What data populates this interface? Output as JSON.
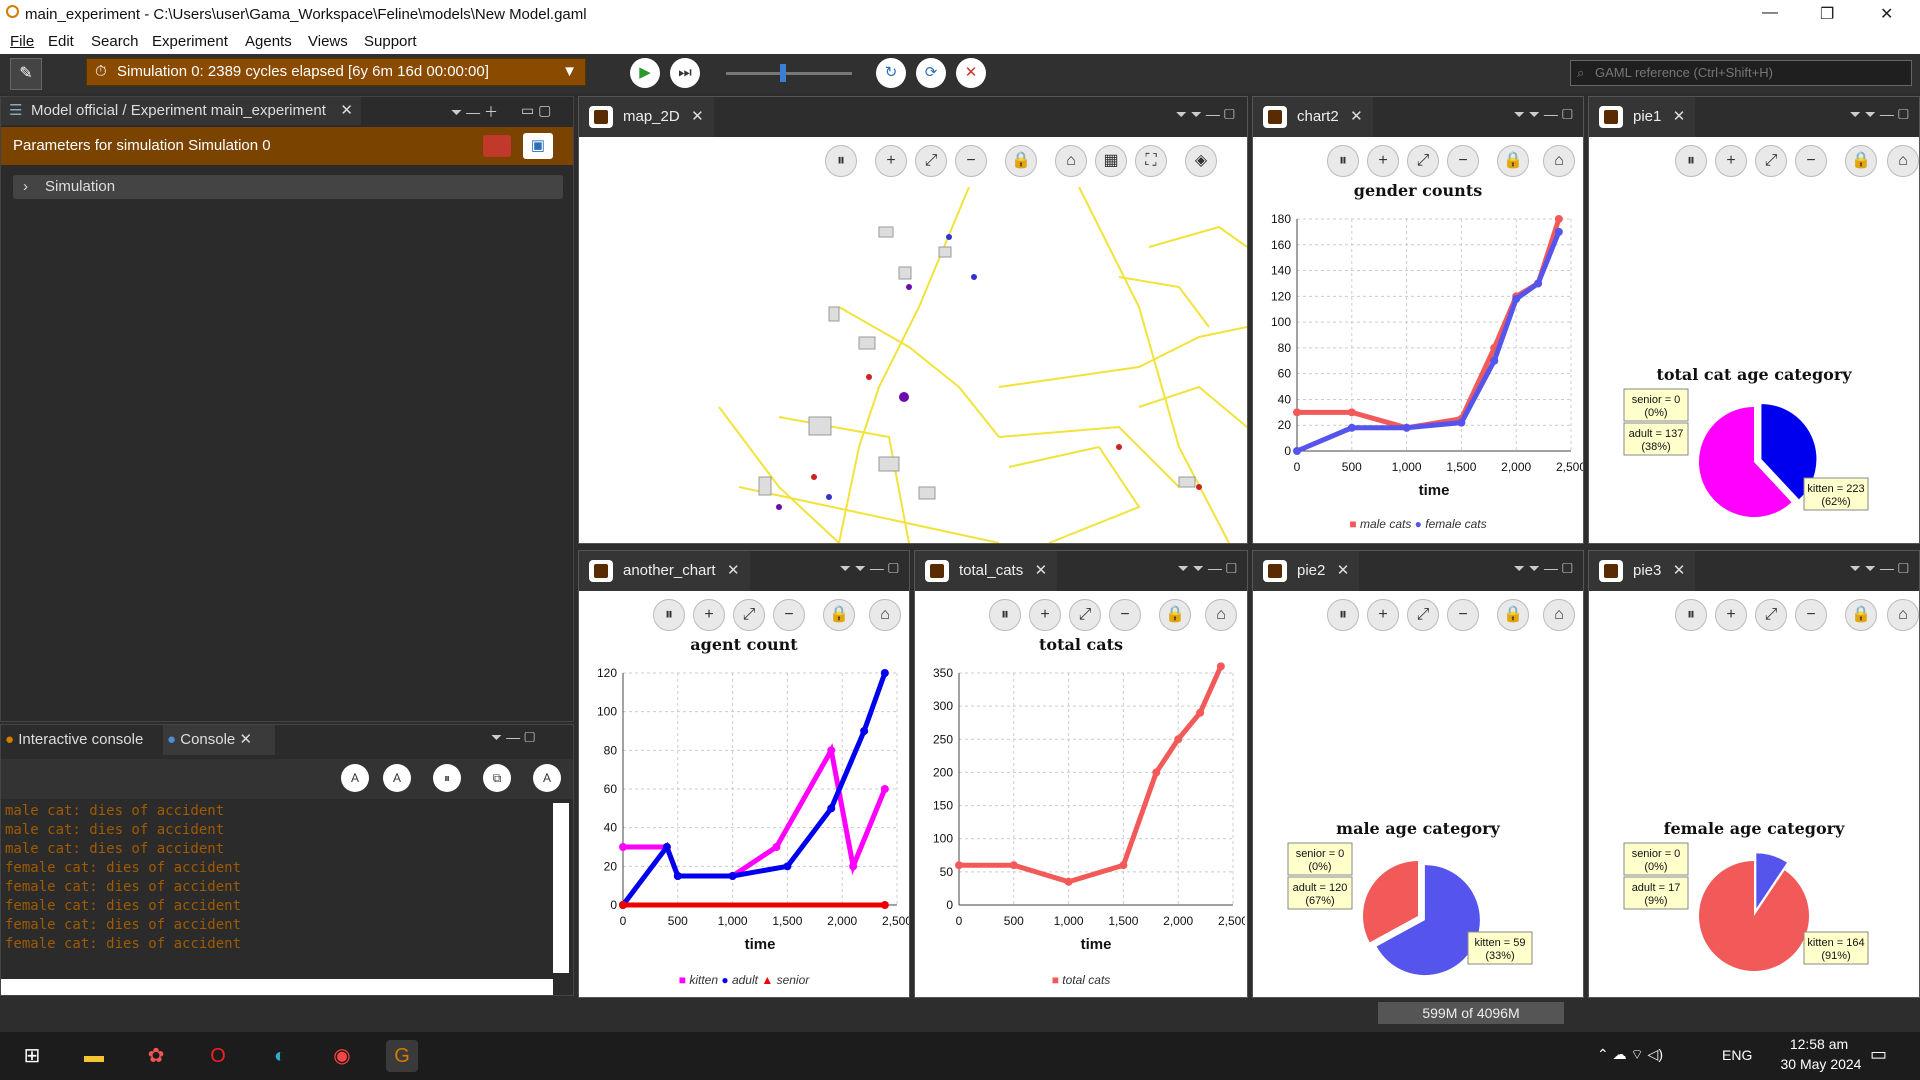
{
  "window": {
    "title": "main_experiment - C:\\Users\\user\\Gama_Workspace\\Feline\\models\\New Model.gaml",
    "min": "—",
    "max": "❐",
    "close": "✕"
  },
  "menu": [
    "File",
    "Edit",
    "Search",
    "Experiment",
    "Agents",
    "Views",
    "Support"
  ],
  "toolbar": {
    "sim_status": "Simulation 0: 2389 cycles elapsed [6y 6m 16d 00:00:00]",
    "search_placeholder": "GAML reference (Ctrl+Shift+H)"
  },
  "left_panel": {
    "tab": "Model official / Experiment main_experiment",
    "params_title": "Parameters for simulation Simulation 0",
    "section": "Simulation"
  },
  "console": {
    "tab_interactive": "Interactive console",
    "tab_console": "Console",
    "lines": [
      "male cat: dies of accident",
      "male cat: dies of accident",
      "male cat: dies of accident",
      "female cat: dies of accident",
      "female cat: dies of accident",
      "female cat: dies of accident",
      "female cat: dies of accident",
      "female cat: dies of accident"
    ]
  },
  "views": {
    "map": {
      "tab": "map_2D"
    },
    "chart2": {
      "tab": "chart2",
      "title": "gender counts",
      "xlabel": "time",
      "legend": [
        "male cats",
        "female cats"
      ]
    },
    "pie1": {
      "tab": "pie1",
      "title": "total cat age category",
      "labels": [
        "senior = 0\n(0%)",
        "adult = 137\n(38%)",
        "kitten = 223\n(62%)"
      ]
    },
    "another_chart": {
      "tab": "another_chart",
      "title": "agent count",
      "xlabel": "time",
      "legend": [
        "kitten",
        "adult",
        "senior"
      ]
    },
    "total_cats": {
      "tab": "total_cats",
      "title": "total cats",
      "xlabel": "time",
      "legend": [
        "total cats"
      ]
    },
    "pie2": {
      "tab": "pie2",
      "title": "male age category"
    },
    "pie3": {
      "tab": "pie3",
      "title": "female age category"
    }
  },
  "chart_data": [
    {
      "type": "line",
      "title": "gender counts",
      "xlabel": "time",
      "ylabel": "",
      "xlim": [
        0,
        2500
      ],
      "ylim": [
        0,
        180
      ],
      "series": [
        {
          "name": "male cats",
          "x": [
            0,
            500,
            1000,
            1500,
            1800,
            2000,
            2200,
            2389
          ],
          "y": [
            30,
            30,
            18,
            25,
            80,
            120,
            130,
            180
          ]
        },
        {
          "name": "female cats",
          "x": [
            0,
            500,
            1000,
            1500,
            1800,
            2000,
            2200,
            2389
          ],
          "y": [
            0,
            18,
            18,
            22,
            70,
            118,
            130,
            170
          ]
        }
      ]
    },
    {
      "type": "pie",
      "title": "total cat age category",
      "categories": [
        "senior",
        "adult",
        "kitten"
      ],
      "values": [
        0,
        137,
        223
      ]
    },
    {
      "type": "line",
      "title": "agent count",
      "xlabel": "time",
      "ylabel": "",
      "xlim": [
        0,
        2500
      ],
      "ylim": [
        0,
        120
      ],
      "series": [
        {
          "name": "kitten",
          "x": [
            0,
            400,
            500,
            1000,
            1400,
            1900,
            2100,
            2389
          ],
          "y": [
            30,
            30,
            15,
            15,
            30,
            80,
            20,
            60
          ]
        },
        {
          "name": "adult",
          "x": [
            0,
            400,
            500,
            1000,
            1500,
            1900,
            2200,
            2389
          ],
          "y": [
            0,
            30,
            15,
            15,
            20,
            50,
            90,
            120
          ]
        },
        {
          "name": "senior",
          "x": [
            0,
            2389
          ],
          "y": [
            0,
            0
          ]
        }
      ]
    },
    {
      "type": "line",
      "title": "total cats",
      "xlabel": "time",
      "ylabel": "",
      "xlim": [
        0,
        2500
      ],
      "ylim": [
        0,
        350
      ],
      "series": [
        {
          "name": "total cats",
          "x": [
            0,
            500,
            1000,
            1500,
            1800,
            2000,
            2200,
            2389
          ],
          "y": [
            60,
            60,
            35,
            60,
            200,
            250,
            290,
            360
          ]
        }
      ]
    },
    {
      "type": "pie",
      "title": "male age category",
      "categories": [
        "senior",
        "adult",
        "kitten"
      ],
      "values": [
        0,
        120,
        59
      ]
    },
    {
      "type": "pie",
      "title": "female age category",
      "categories": [
        "senior",
        "adult",
        "kitten"
      ],
      "values": [
        0,
        17,
        164
      ]
    }
  ],
  "statusbar": {
    "memory": "599M of 4096M"
  },
  "taskbar": {
    "lang": "ENG",
    "time": "12:58 am",
    "date": "30 May 2024"
  }
}
